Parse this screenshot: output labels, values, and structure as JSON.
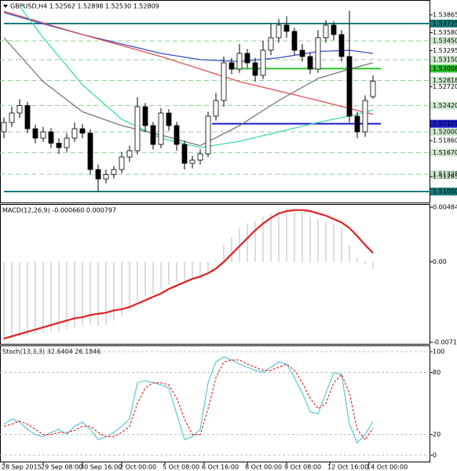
{
  "chart_data": [
    {
      "type": "candlestick",
      "title": "GBPUSD,H4  1.52562 1.52898 1.52530 1.52809",
      "open": [
        1.52,
        1.5215,
        1.523,
        1.5242,
        1.5205,
        1.519,
        1.52,
        1.5182,
        1.5175,
        1.519,
        1.5205,
        1.5198,
        1.514,
        1.5125,
        1.5132,
        1.514,
        1.516,
        1.517,
        1.524,
        1.521,
        1.518,
        1.523,
        1.521,
        1.518,
        1.515,
        1.5155,
        1.5165,
        1.5225,
        1.525,
        1.531,
        1.53,
        1.5325,
        1.531,
        1.529,
        1.533,
        1.535,
        1.537,
        1.536,
        1.533,
        1.532,
        1.53,
        1.535,
        1.537,
        1.5355,
        1.532,
        1.5225,
        1.52,
        1.52562
      ],
      "high": [
        1.5223,
        1.524,
        1.5252,
        1.5248,
        1.5212,
        1.5208,
        1.5206,
        1.519,
        1.5198,
        1.5215,
        1.5212,
        1.5204,
        1.5148,
        1.514,
        1.5146,
        1.5168,
        1.5178,
        1.5255,
        1.5246,
        1.5216,
        1.5238,
        1.5236,
        1.5216,
        1.5186,
        1.5162,
        1.5172,
        1.5232,
        1.5262,
        1.532,
        1.5318,
        1.534,
        1.5332,
        1.5318,
        1.5345,
        1.5372,
        1.538,
        1.5384,
        1.5366,
        1.534,
        1.5326,
        1.5362,
        1.5378,
        1.5376,
        1.5362,
        1.5393,
        1.5232,
        1.5258,
        1.52898
      ],
      "low": [
        1.519,
        1.5208,
        1.5222,
        1.5198,
        1.5182,
        1.5184,
        1.5174,
        1.5165,
        1.5168,
        1.5184,
        1.519,
        1.5132,
        1.5105,
        1.5118,
        1.5126,
        1.5134,
        1.5152,
        1.5164,
        1.52,
        1.5172,
        1.5174,
        1.5202,
        1.517,
        1.514,
        1.5142,
        1.5148,
        1.516,
        1.5218,
        1.524,
        1.5292,
        1.5294,
        1.5302,
        1.528,
        1.5284,
        1.5322,
        1.5342,
        1.535,
        1.5322,
        1.5312,
        1.5292,
        1.5294,
        1.5342,
        1.5346,
        1.5312,
        1.5215,
        1.519,
        1.5192,
        1.5253
      ],
      "close": [
        1.5215,
        1.523,
        1.5242,
        1.5205,
        1.519,
        1.52,
        1.5182,
        1.5175,
        1.519,
        1.5205,
        1.5198,
        1.514,
        1.5125,
        1.5132,
        1.514,
        1.516,
        1.517,
        1.524,
        1.521,
        1.518,
        1.523,
        1.521,
        1.518,
        1.515,
        1.5155,
        1.5165,
        1.5225,
        1.525,
        1.531,
        1.53,
        1.5325,
        1.531,
        1.529,
        1.533,
        1.535,
        1.537,
        1.536,
        1.533,
        1.532,
        1.53,
        1.535,
        1.537,
        1.5355,
        1.532,
        1.5225,
        1.52,
        1.525,
        1.52809
      ],
      "ylim": [
        1.509,
        1.5405
      ],
      "yticks": [
        1.53865,
        {
          "value": 1.5358,
          "label": "1.53580"
        },
        1.53295,
        {
          "value": 1.5272,
          "label": "1.52720"
        },
        {
          "value": 1.5186,
          "label": "1.51860"
        },
        1.51285
      ],
      "levels": [
        {
          "value": 1.5345,
          "label": "1.53450",
          "color": "#8fcf8f",
          "style": "dashed"
        },
        {
          "value": 1.5315,
          "label": "1.53150",
          "color": "#8fcf8f",
          "style": "dashed"
        },
        {
          "value": 1.52818,
          "label": "1.52818",
          "color": "#8fcf8f",
          "style": "dashed"
        },
        {
          "value": 1.5242,
          "label": "1.52420",
          "color": "#8fcf8f",
          "style": "dashed"
        },
        {
          "value": 1.52,
          "label": "1.52000",
          "color": "#8fcf8f",
          "style": "dashed"
        },
        {
          "value": 1.5167,
          "label": "1.51670",
          "color": "#8fcf8f",
          "style": "dashed"
        },
        {
          "value": 1.51325,
          "label": "1.51325",
          "color": "#8fcf8f",
          "style": "dashed"
        },
        {
          "value": 1.53725,
          "label": "1.53725",
          "color": "#1b7b7b",
          "style": "solid",
          "start": 0
        },
        {
          "value": 1.5105,
          "label": "1.51050",
          "color": "#1b7b7b",
          "style": "solid",
          "start": 0
        },
        {
          "value": 1.53008,
          "label": "1.53008",
          "color": "#2ec02e",
          "style": "solid",
          "start": 29
        },
        {
          "value": 1.52129,
          "label": "1.52129",
          "color": "#1c1cc8",
          "style": "solid",
          "start": 26.5
        }
      ],
      "lines": [
        {
          "color": "#3a4fc8",
          "x": [
            0,
            5,
            10,
            15,
            20,
            25,
            30,
            35,
            40,
            44,
            47
          ],
          "values": [
            1.539,
            1.5372,
            1.5355,
            1.534,
            1.5325,
            1.5315,
            1.5312,
            1.5318,
            1.5328,
            1.533,
            1.5325
          ]
        },
        {
          "color": "#e05050",
          "x": [
            0,
            10,
            20,
            25,
            30,
            40,
            47
          ],
          "values": [
            1.5392,
            1.5355,
            1.532,
            1.53,
            1.528,
            1.525,
            1.5228
          ]
        },
        {
          "color": "#40d8b0",
          "x": [
            2,
            5,
            10,
            15,
            20,
            25,
            30,
            35,
            40,
            45,
            47
          ],
          "values": [
            1.54,
            1.535,
            1.5275,
            1.522,
            1.519,
            1.5175,
            1.5185,
            1.52,
            1.5215,
            1.5228,
            1.5235
          ]
        },
        {
          "color": "#777777",
          "x": [
            0,
            5,
            10,
            15,
            20,
            25,
            30,
            35,
            40,
            44,
            47
          ],
          "values": [
            1.535,
            1.528,
            1.5232,
            1.521,
            1.5195,
            1.5178,
            1.521,
            1.525,
            1.5285,
            1.53,
            1.531
          ]
        }
      ]
    },
    {
      "type": "macd",
      "title": "MACD(12,26,9) -0.000660 0.000797",
      "ylim": [
        -0.007125,
        0.004847
      ],
      "yticks": [
        0.004847,
        {
          "value": 0,
          "label": "0.00"
        },
        -0.007125
      ],
      "series": [
        {
          "kind": "histogram",
          "color": "#b8b8b8",
          "values": [
            -0.007,
            -0.0068,
            -0.0066,
            -0.0065,
            -0.0064,
            -0.0063,
            -0.0062,
            -0.0062,
            -0.006,
            -0.0058,
            -0.0056,
            -0.0056,
            -0.0057,
            -0.0056,
            -0.0052,
            -0.0048,
            -0.0044,
            -0.0035,
            -0.003,
            -0.0028,
            -0.0024,
            -0.002,
            -0.0018,
            -0.0017,
            -0.0016,
            -0.0014,
            -0.0008,
            0.0002,
            0.0015,
            0.0022,
            0.003,
            0.0034,
            0.0036,
            0.004,
            0.0043,
            0.0046,
            0.0047,
            0.0046,
            0.0044,
            0.004,
            0.0038,
            0.0036,
            0.0034,
            0.003,
            0.0015,
            0.0004,
            -0.0002,
            -0.00066
          ]
        },
        {
          "kind": "line",
          "color": "#e02020",
          "values": [
            -0.0068,
            -0.0066,
            -0.0064,
            -0.0062,
            -0.006,
            -0.0058,
            -0.0056,
            -0.0054,
            -0.0052,
            -0.005,
            -0.0049,
            -0.0047,
            -0.0046,
            -0.0045,
            -0.0043,
            -0.0042,
            -0.004,
            -0.0037,
            -0.0034,
            -0.0031,
            -0.0028,
            -0.0024,
            -0.0021,
            -0.0018,
            -0.0015,
            -0.0013,
            -0.001,
            -0.0006,
            0.0,
            0.0007,
            0.0014,
            0.0021,
            0.0028,
            0.0034,
            0.0039,
            0.0043,
            0.0045,
            0.0046,
            0.0046,
            0.0045,
            0.0043,
            0.0041,
            0.0038,
            0.0035,
            0.003,
            0.0023,
            0.0015,
            0.000797
          ]
        }
      ]
    },
    {
      "type": "stochastic",
      "title": "Stoch(13,3,3) 32.6404 26.1846",
      "ylim": [
        0,
        100
      ],
      "yticks": [
        100,
        80,
        20,
        0
      ],
      "series": [
        {
          "kind": "line",
          "color": "#5cc4dc",
          "values": [
            30,
            35,
            32,
            25,
            20,
            18,
            22,
            25,
            20,
            28,
            32,
            25,
            15,
            18,
            22,
            28,
            35,
            70,
            72,
            70,
            68,
            65,
            40,
            15,
            18,
            25,
            70,
            90,
            95,
            92,
            88,
            85,
            82,
            80,
            85,
            90,
            88,
            75,
            60,
            42,
            40,
            60,
            80,
            78,
            30,
            12,
            20,
            32.6404
          ]
        },
        {
          "kind": "dashed",
          "color": "#e03030",
          "values": [
            28,
            30,
            33,
            30,
            25,
            20,
            20,
            22,
            22,
            24,
            28,
            28,
            22,
            18,
            18,
            22,
            28,
            50,
            65,
            70,
            70,
            68,
            55,
            35,
            20,
            20,
            45,
            75,
            90,
            92,
            92,
            88,
            85,
            82,
            82,
            85,
            88,
            82,
            70,
            55,
            45,
            50,
            70,
            78,
            60,
            25,
            15,
            26.1846
          ]
        }
      ],
      "xticks": [
        {
          "value": 0,
          "label": "28 Sep 2015"
        },
        {
          "value": 5,
          "label": "29 Sep 08:00"
        },
        {
          "value": 10,
          "label": "30 Sep 16:00"
        },
        {
          "value": 15,
          "label": "2 Oct 00:00"
        },
        {
          "value": 20.5,
          "label": "5 Oct 08:00"
        },
        {
          "value": 25.5,
          "label": "6 Oct 16:00"
        },
        {
          "value": 31,
          "label": "8 Oct 00:00"
        },
        {
          "value": 36,
          "label": "9 Oct 08:00"
        },
        {
          "value": 41.5,
          "label": "12 Oct 16:00"
        },
        {
          "value": 46.5,
          "label": "14 Oct 00:00"
        }
      ]
    }
  ]
}
